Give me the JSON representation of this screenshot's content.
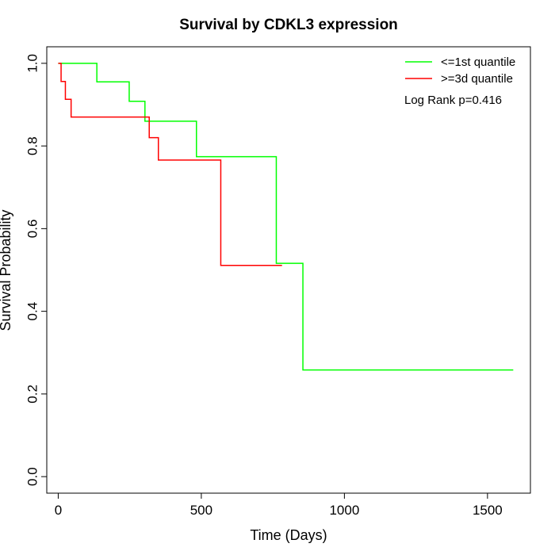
{
  "chart_data": {
    "type": "line",
    "title": "Survival by CDKL3 expression",
    "xlabel": "Time (Days)",
    "ylabel": "Survival Probability",
    "xlim": [
      -40,
      1650
    ],
    "ylim": [
      -0.04,
      1.04
    ],
    "x_ticks": [
      0,
      500,
      1000,
      1500
    ],
    "x_tick_labels": [
      "0",
      "500",
      "1000",
      "1500"
    ],
    "y_ticks": [
      0.0,
      0.2,
      0.4,
      0.6,
      0.8,
      1.0
    ],
    "y_tick_labels": [
      "0.0",
      "0.2",
      "0.4",
      "0.6",
      "0.8",
      "1.0"
    ],
    "grid": false,
    "legend_position": "top-right",
    "annotation": "Log Rank p=0.416",
    "series": [
      {
        "name": "<=1st quantile",
        "color": "#00ff00",
        "x": [
          0,
          135,
          248,
          303,
          483,
          762,
          855,
          1590
        ],
        "y": [
          1.0,
          0.955,
          0.908,
          0.86,
          0.774,
          0.516,
          0.258,
          0.258
        ]
      },
      {
        "name": ">=3d quantile",
        "color": "#ff0000",
        "x": [
          0,
          10,
          25,
          45,
          318,
          350,
          568,
          782
        ],
        "y": [
          1.0,
          0.956,
          0.913,
          0.87,
          0.82,
          0.766,
          0.511,
          0.511
        ]
      }
    ]
  }
}
